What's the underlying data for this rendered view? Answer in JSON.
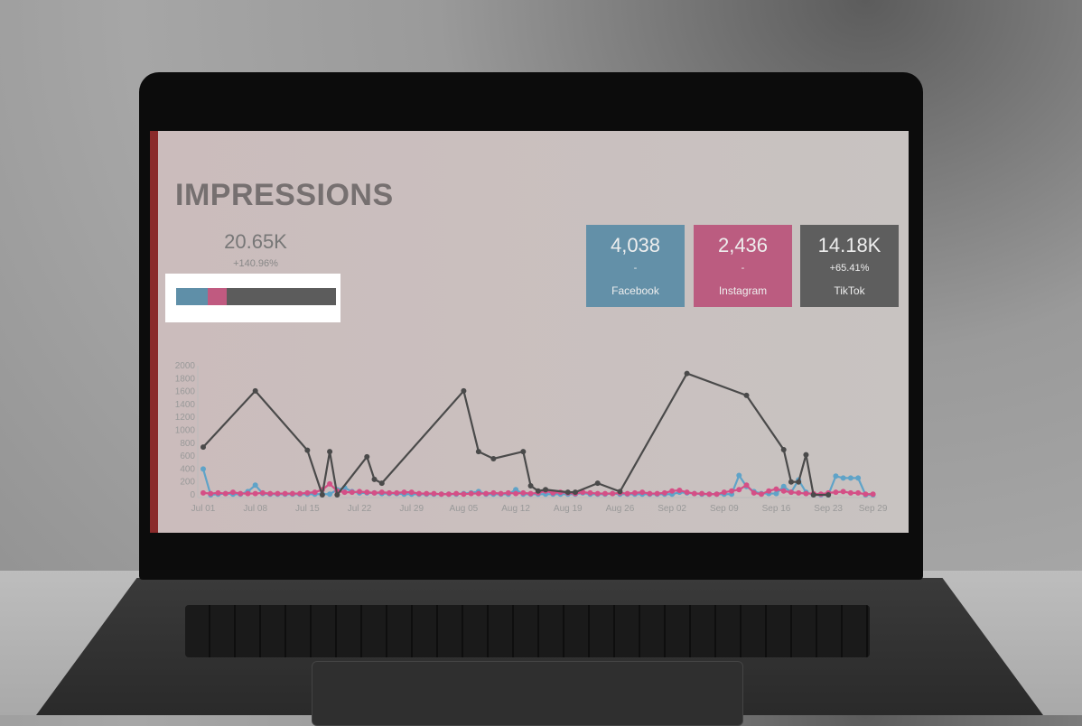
{
  "dashboard": {
    "title": "IMPRESSIONS",
    "total": {
      "value": "20.65K",
      "change": "+140.96%"
    },
    "share_bar": [
      {
        "platform": "Facebook",
        "share": 19.6,
        "color": "#5f8fa8"
      },
      {
        "platform": "Instagram",
        "share": 11.8,
        "color": "#c05a80"
      },
      {
        "platform": "TikTok",
        "share": 68.6,
        "color": "#5c5c5c"
      }
    ],
    "kpis": [
      {
        "value": "4,038",
        "change": "-",
        "label": "Facebook",
        "color": "#6390a8"
      },
      {
        "value": "2,436",
        "change": "-",
        "label": "Instagram",
        "color": "#bb5c80"
      },
      {
        "value": "14.18K",
        "change": "+65.41%",
        "label": "TikTok",
        "color": "#5e5e5e"
      }
    ]
  },
  "chart_data": {
    "type": "line",
    "ylim": [
      0,
      2000
    ],
    "yticks": [
      0,
      200,
      400,
      600,
      800,
      1000,
      1200,
      1400,
      1600,
      1800,
      2000
    ],
    "xticks": [
      "Jul 01",
      "Jul 08",
      "Jul 15",
      "Jul 22",
      "Jul 29",
      "Aug 05",
      "Aug 12",
      "Aug 19",
      "Aug 26",
      "Sep 02",
      "Sep 09",
      "Sep 16",
      "Sep 23",
      "Sep 29"
    ],
    "x_range": [
      "Jul 01",
      "Sep 29"
    ],
    "grid": false,
    "series": [
      {
        "color": "#5fa3c8",
        "values": [
          400,
          0,
          10,
          20,
          10,
          10,
          50,
          150,
          20,
          10,
          10,
          10,
          10,
          10,
          10,
          10,
          10,
          10,
          80,
          110,
          50,
          30,
          30,
          30,
          20,
          20,
          20,
          10,
          10,
          10,
          10,
          10,
          10,
          10,
          10,
          20,
          30,
          50,
          10,
          10,
          10,
          10,
          80,
          10,
          10,
          10,
          10,
          10,
          10,
          10,
          10,
          30,
          10,
          10,
          10,
          20,
          10,
          10,
          10,
          10,
          10,
          10,
          10,
          10,
          40,
          30,
          20,
          10,
          10,
          10,
          10,
          10,
          300,
          130,
          50,
          20,
          20,
          20,
          130,
          40,
          230,
          40,
          0,
          0,
          0,
          290,
          260,
          260,
          260,
          0,
          0
        ]
      },
      {
        "color": "#d44f86",
        "values": [
          30,
          20,
          30,
          20,
          40,
          20,
          20,
          20,
          30,
          20,
          20,
          20,
          20,
          20,
          30,
          40,
          80,
          170,
          60,
          40,
          40,
          50,
          40,
          30,
          40,
          30,
          30,
          40,
          40,
          20,
          20,
          20,
          10,
          10,
          20,
          10,
          20,
          20,
          20,
          30,
          20,
          30,
          20,
          30,
          20,
          30,
          60,
          30,
          40,
          30,
          20,
          40,
          30,
          20,
          20,
          20,
          30,
          20,
          30,
          40,
          20,
          20,
          30,
          60,
          70,
          40,
          20,
          20,
          10,
          10,
          40,
          60,
          80,
          150,
          30,
          10,
          60,
          90,
          60,
          40,
          30,
          20,
          20,
          10,
          30,
          40,
          50,
          30,
          30,
          10,
          10
        ]
      },
      {
        "color": "#4a4a4a",
        "points": [
          [
            "Jul 01",
            740
          ],
          [
            "Jul 08",
            1610
          ],
          [
            "Jul 15",
            690
          ],
          [
            "Jul 17",
            0
          ],
          [
            "Jul 18",
            670
          ],
          [
            "Jul 19",
            0
          ],
          [
            "Jul 23",
            590
          ],
          [
            "Jul 24",
            240
          ],
          [
            "Jul 25",
            180
          ],
          [
            "Aug 05",
            1610
          ],
          [
            "Aug 07",
            670
          ],
          [
            "Aug 09",
            560
          ],
          [
            "Aug 13",
            670
          ],
          [
            "Aug 14",
            140
          ],
          [
            "Aug 15",
            60
          ],
          [
            "Aug 16",
            80
          ],
          [
            "Aug 19",
            40
          ],
          [
            "Aug 20",
            40
          ],
          [
            "Aug 23",
            180
          ],
          [
            "Aug 26",
            50
          ],
          [
            "Sep 04",
            1880
          ],
          [
            "Sep 12",
            1540
          ],
          [
            "Sep 17",
            700
          ],
          [
            "Sep 18",
            200
          ],
          [
            "Sep 19",
            200
          ],
          [
            "Sep 20",
            620
          ],
          [
            "Sep 21",
            0
          ],
          [
            "Sep 23",
            0
          ]
        ]
      }
    ]
  }
}
